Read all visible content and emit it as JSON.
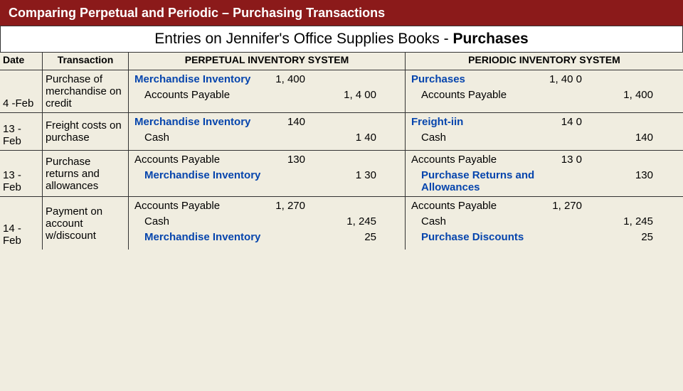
{
  "title": "Comparing Perpetual and Periodic – Purchasing Transactions",
  "subtitle_prefix": "Entries on Jennifer's Office Supplies Books - ",
  "subtitle_bold": "Purchases",
  "headers": {
    "date": "Date",
    "transaction": "Transaction",
    "perpetual": "PERPETUAL INVENTORY SYSTEM",
    "periodic": "PERIODIC INVENTORY SYSTEM"
  },
  "rows": [
    {
      "date": "4 -Feb",
      "transaction": "Purchase of merchandise on credit",
      "perpetual": [
        {
          "account": "Merchandise Inventory",
          "debit": "1, 400",
          "credit": "",
          "blue": true,
          "indent": false
        },
        {
          "account": "Accounts Payable",
          "debit": "",
          "credit": "1, 4 00",
          "blue": false,
          "indent": true
        }
      ],
      "periodic": [
        {
          "account": "Purchases",
          "debit": "1, 40 0",
          "credit": "",
          "blue": true,
          "indent": false
        },
        {
          "account": "Accounts Payable",
          "debit": "",
          "credit": "1, 400",
          "blue": false,
          "indent": true
        }
      ]
    },
    {
      "date": "13 -Feb",
      "transaction": "Freight costs on purchase",
      "perpetual": [
        {
          "account": "Merchandise Inventory",
          "debit": "140",
          "credit": "",
          "blue": true,
          "indent": false
        },
        {
          "account": "Cash",
          "debit": "",
          "credit": "1 40",
          "blue": false,
          "indent": true
        }
      ],
      "periodic": [
        {
          "account": "Freight-iin",
          "debit": "14 0",
          "credit": "",
          "blue": true,
          "indent": false
        },
        {
          "account": "Cash",
          "debit": "",
          "credit": "140",
          "blue": false,
          "indent": true
        }
      ]
    },
    {
      "date": "13 -Feb",
      "transaction": "Purchase returns and allowances",
      "perpetual": [
        {
          "account": "Accounts Payable",
          "debit": "130",
          "credit": "",
          "blue": false,
          "indent": false
        },
        {
          "account": "Merchandise Inventory",
          "debit": "",
          "credit": "1 30",
          "blue": true,
          "indent": true
        }
      ],
      "periodic": [
        {
          "account": "Accounts Payable",
          "debit": "13 0",
          "credit": "",
          "blue": false,
          "indent": false
        },
        {
          "account": "Purchase Returns and Allowances",
          "debit": "",
          "credit": "130",
          "blue": true,
          "indent": true
        }
      ]
    },
    {
      "date": "14 -Feb",
      "transaction": "Payment on account w/discount",
      "perpetual": [
        {
          "account": "Accounts Payable",
          "debit": "1, 270",
          "credit": "",
          "blue": false,
          "indent": false
        },
        {
          "account": "Cash",
          "debit": "",
          "credit": "1, 245",
          "blue": false,
          "indent": true
        },
        {
          "account": "Merchandise Inventory",
          "debit": "",
          "credit": "25",
          "blue": true,
          "indent": true
        }
      ],
      "periodic": [
        {
          "account": "Accounts Payable",
          "debit": "1, 270",
          "credit": "",
          "blue": false,
          "indent": false
        },
        {
          "account": "Cash",
          "debit": "",
          "credit": "1, 245",
          "blue": false,
          "indent": true
        },
        {
          "account": "Purchase Discounts",
          "debit": "",
          "credit": "25",
          "blue": true,
          "indent": true
        }
      ]
    }
  ]
}
